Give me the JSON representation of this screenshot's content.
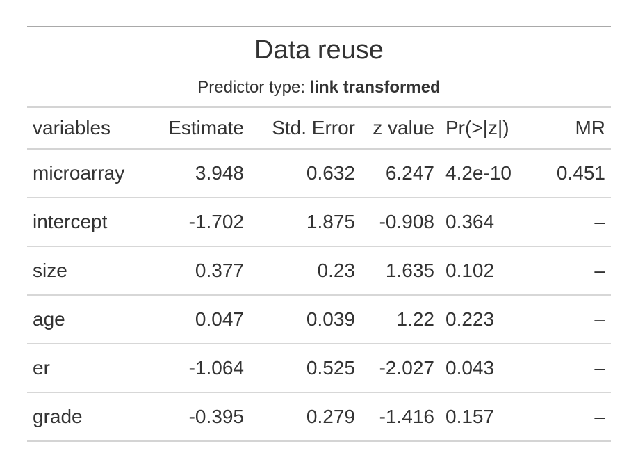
{
  "table": {
    "title": "Data reuse",
    "subtitle_prefix": "Predictor type: ",
    "subtitle_bold": "link transformed",
    "columns": [
      {
        "label": "variables",
        "align": "left"
      },
      {
        "label": "Estimate",
        "align": "right"
      },
      {
        "label": "Std. Error",
        "align": "right"
      },
      {
        "label": "z value",
        "align": "right"
      },
      {
        "label": "Pr(>|z|)",
        "align": "left"
      },
      {
        "label": "MR",
        "align": "right"
      }
    ],
    "rows": [
      [
        "microarray",
        "3.948",
        "0.632",
        "6.247",
        "4.2e-10",
        "0.451"
      ],
      [
        "intercept",
        "-1.702",
        "1.875",
        "-0.908",
        "0.364",
        "–"
      ],
      [
        "size",
        "0.377",
        "0.23",
        "1.635",
        "0.102",
        "–"
      ],
      [
        "age",
        "0.047",
        "0.039",
        "1.22",
        "0.223",
        "–"
      ],
      [
        "er",
        "-1.064",
        "0.525",
        "-2.027",
        "0.043",
        "–"
      ],
      [
        "grade",
        "-0.395",
        "0.279",
        "-1.416",
        "0.157",
        "–"
      ]
    ],
    "missing_value_mark": "–",
    "colors": {
      "text": "#333333",
      "border_top": "#A9A9A9",
      "border_light": "#D4D4D4",
      "row_line": "#D7D7D7"
    }
  }
}
